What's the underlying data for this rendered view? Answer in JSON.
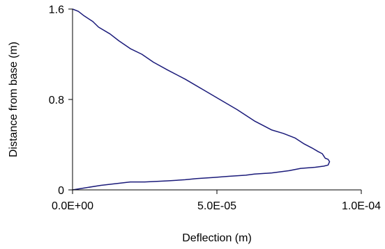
{
  "chart_data": {
    "type": "line",
    "title": "",
    "xlabel": "Deflection (m)",
    "ylabel": "Distance from base (m)",
    "xlim": [
      0,
      0.0001
    ],
    "ylim": [
      0,
      1.6
    ],
    "x_ticks": [
      0,
      5e-05,
      0.0001
    ],
    "x_tick_labels": [
      "0.0E+00",
      "5.0E-05",
      "1.0E-04"
    ],
    "y_ticks": [
      0,
      0.8,
      1.6
    ],
    "y_tick_labels": [
      "0",
      "0.8",
      "1.6"
    ],
    "grid": false,
    "legend": "none",
    "series": [
      {
        "color": "#1a1a7a",
        "x": [
          0,
          9.8e-06,
          2e-05,
          2.5e-05,
          3.3e-05,
          3.9e-05,
          4.3e-05,
          4.9e-05,
          5.4e-05,
          6e-05,
          6.3e-05,
          6.9e-05,
          7.5e-05,
          7.9e-05,
          8.4e-05,
          8.7e-05,
          8.85e-05,
          8.9e-05,
          8.85e-05,
          8.75e-05,
          8.7e-05,
          8.65e-05,
          8.5e-05,
          8.3e-05,
          8e-05,
          7.7e-05,
          7.3e-05,
          6.9e-05,
          6.3e-05,
          5.7e-05,
          5.1e-05,
          4.5e-05,
          3.9e-05,
          3.3e-05,
          2.8e-05,
          2.4e-05,
          2e-05,
          1.6e-05,
          1.3e-05,
          9e-06,
          7e-06,
          4e-06,
          2e-06,
          0
        ],
        "y": [
          0,
          0.04,
          0.07,
          0.07,
          0.08,
          0.09,
          0.1,
          0.11,
          0.12,
          0.13,
          0.14,
          0.15,
          0.17,
          0.19,
          0.2,
          0.21,
          0.22,
          0.25,
          0.27,
          0.28,
          0.3,
          0.32,
          0.34,
          0.37,
          0.41,
          0.46,
          0.5,
          0.53,
          0.61,
          0.71,
          0.8,
          0.89,
          0.98,
          1.06,
          1.13,
          1.2,
          1.25,
          1.32,
          1.38,
          1.44,
          1.49,
          1.54,
          1.58,
          1.6
        ]
      }
    ]
  }
}
